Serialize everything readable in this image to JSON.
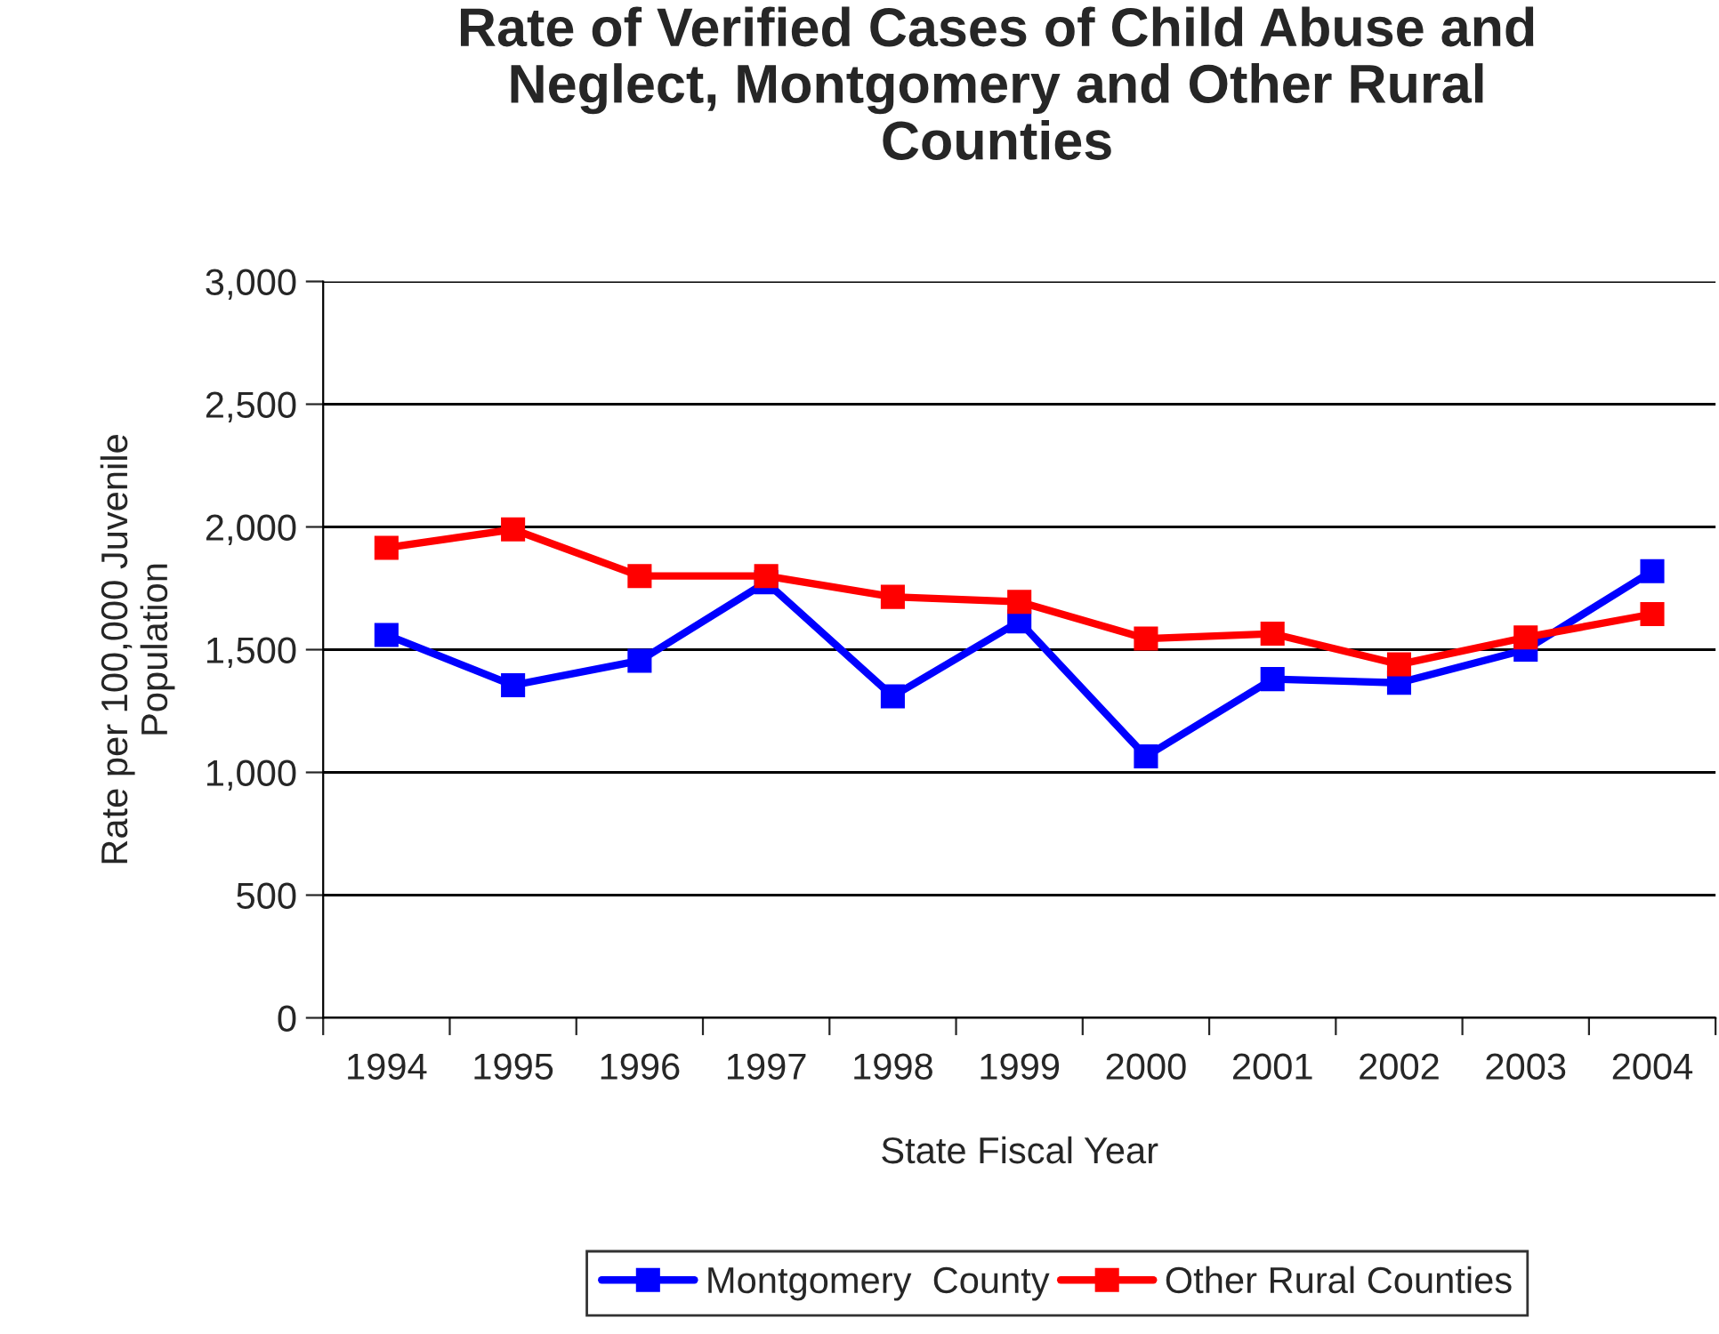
{
  "chart_data": {
    "type": "line",
    "title": "Rate of Verified Cases of Child Abuse and\nNeglect, Montgomery and Other Rural\nCounties",
    "xlabel": "State Fiscal Year",
    "ylabel": "Rate per 100,000 Juvenile\nPopulation",
    "categories": [
      "1994",
      "1995",
      "1996",
      "1997",
      "1998",
      "1999",
      "2000",
      "2001",
      "2002",
      "2003",
      "2004"
    ],
    "series": [
      {
        "name": "Montgomery  County",
        "color": "#0000ff",
        "values": [
          1560,
          1355,
          1455,
          1775,
          1310,
          1615,
          1065,
          1380,
          1365,
          1500,
          1820
        ]
      },
      {
        "name": "Other Rural Counties",
        "color": "#ff0000",
        "values": [
          1915,
          1990,
          1800,
          1800,
          1715,
          1695,
          1545,
          1565,
          1440,
          1550,
          1645
        ]
      }
    ],
    "ylim": [
      0,
      3000
    ],
    "yticks": [
      {
        "value": 0,
        "label": "0"
      },
      {
        "value": 500,
        "label": "500"
      },
      {
        "value": 1000,
        "label": "1,000"
      },
      {
        "value": 1500,
        "label": "1,500"
      },
      {
        "value": 2000,
        "label": "2,000"
      },
      {
        "value": 2500,
        "label": "2,500"
      },
      {
        "value": 3000,
        "label": "3,000"
      }
    ],
    "grid": "y",
    "legend": "bottom",
    "marker": "square",
    "line_style": "solid"
  }
}
